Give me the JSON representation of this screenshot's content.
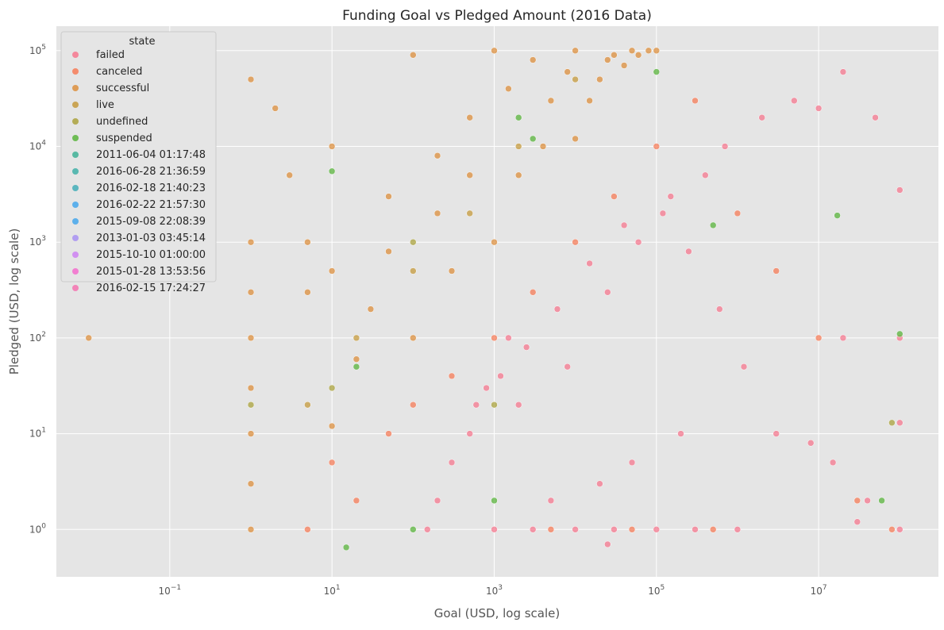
{
  "chart_data": {
    "type": "scatter",
    "title": "Funding Goal vs Pledged Amount (2016 Data)",
    "xlabel": "Goal (USD, log scale)",
    "ylabel": "Pledged (USD, log scale)",
    "x_scale": "log",
    "y_scale": "log",
    "xlim": [
      0.004,
      300000000
    ],
    "ylim": [
      0.32,
      180000
    ],
    "x_ticks": [
      {
        "value": 0.1,
        "base": "10",
        "exp": "−1"
      },
      {
        "value": 10,
        "base": "10",
        "exp": "1"
      },
      {
        "value": 1000,
        "base": "10",
        "exp": "3"
      },
      {
        "value": 100000,
        "base": "10",
        "exp": "5"
      },
      {
        "value": 10000000,
        "base": "10",
        "exp": "7"
      }
    ],
    "y_ticks": [
      {
        "value": 1,
        "base": "10",
        "exp": "0"
      },
      {
        "value": 10,
        "base": "10",
        "exp": "1"
      },
      {
        "value": 100,
        "base": "10",
        "exp": "2"
      },
      {
        "value": 1000,
        "base": "10",
        "exp": "3"
      },
      {
        "value": 10000,
        "base": "10",
        "exp": "4"
      },
      {
        "value": 100000,
        "base": "10",
        "exp": "5"
      }
    ],
    "grid": true,
    "legend": {
      "title": "state",
      "placement": "top-left",
      "entries": [
        {
          "label": "failed",
          "color": "#f77189"
        },
        {
          "label": "canceled",
          "color": "#f7754f"
        },
        {
          "label": "successful",
          "color": "#dc8932"
        },
        {
          "label": "live",
          "color": "#c39532"
        },
        {
          "label": "undefined",
          "color": "#a79e32"
        },
        {
          "label": "suspended",
          "color": "#50b131"
        },
        {
          "label": "2011-06-04 01:17:48",
          "color": "#34ae91"
        },
        {
          "label": "2016-06-28 21:36:59",
          "color": "#36ada4"
        },
        {
          "label": "2016-02-18 21:40:23",
          "color": "#38aab5"
        },
        {
          "label": "2016-02-22 21:57:30",
          "color": "#3ba3ec"
        },
        {
          "label": "2015-09-08 22:08:39",
          "color": "#3ba3ec"
        },
        {
          "label": "2013-01-03 03:45:14",
          "color": "#a48cf4"
        },
        {
          "label": "2015-10-10 01:00:00",
          "color": "#cc7af4"
        },
        {
          "label": "2015-01-28 13:53:56",
          "color": "#f565cc"
        },
        {
          "label": "2016-02-15 17:24:27",
          "color": "#f66bad"
        }
      ]
    },
    "series": [
      {
        "name": "failed",
        "color": "#f77189",
        "x": [
          1000,
          3000,
          10000,
          30000,
          100000,
          300000,
          1000000,
          5000,
          20000,
          50000,
          200000,
          2000,
          8000,
          500,
          800,
          1500,
          25000,
          60000,
          150000,
          400000,
          700000,
          2000000,
          5000000,
          10000000,
          20000000,
          50000000,
          100000000,
          100000000,
          30000000,
          15000000,
          8000000,
          3000000,
          1200000,
          600000,
          250000,
          120000,
          40000,
          15000,
          6000,
          2500,
          1200,
          600,
          300,
          200,
          150,
          100000000,
          100000000,
          20000000,
          40000000,
          25000
        ],
        "y": [
          1,
          1,
          1,
          1,
          1,
          1,
          1,
          2,
          3,
          5,
          10,
          20,
          50,
          10,
          30,
          100,
          300,
          1000,
          3000,
          5000,
          10000,
          20000,
          30000,
          25000,
          60000,
          20000,
          3500,
          1,
          1.2,
          5,
          8,
          10,
          50,
          200,
          800,
          2000,
          1500,
          600,
          200,
          80,
          40,
          20,
          5,
          2,
          1,
          100,
          13,
          100,
          2,
          0.7
        ]
      },
      {
        "name": "canceled",
        "color": "#f7754f",
        "x": [
          5,
          10,
          20,
          50,
          100,
          300,
          1000,
          3000,
          10000,
          30000,
          100000,
          300000,
          1000000,
          3000000,
          10000000,
          30000000,
          80000000,
          5000,
          50000,
          500000
        ],
        "y": [
          1,
          5,
          2,
          10,
          20,
          40,
          100,
          300,
          1000,
          3000,
          10000,
          30000,
          2000,
          500,
          100,
          2,
          1,
          1,
          1,
          1
        ]
      },
      {
        "name": "successful",
        "color": "#dc8932",
        "x": [
          1,
          1,
          1,
          1,
          1,
          1,
          1,
          1,
          2,
          3,
          5,
          5,
          10,
          10,
          20,
          30,
          50,
          100,
          100,
          200,
          300,
          500,
          1000,
          1000,
          2000,
          3000,
          5000,
          10000,
          10000,
          20000,
          30000,
          50000,
          100000,
          0.01,
          10,
          50,
          200,
          500,
          1500,
          4000,
          8000,
          15000,
          25000,
          40000,
          60000,
          80000
        ],
        "y": [
          1,
          3,
          10,
          30,
          100,
          300,
          1000,
          50000,
          25000,
          5000,
          300,
          1000,
          12,
          500,
          60,
          200,
          800,
          100,
          90000,
          2000,
          500,
          20000,
          1000,
          100000,
          5000,
          80000,
          30000,
          12000,
          100000,
          50000,
          90000,
          100000,
          100000,
          100,
          10000,
          3000,
          8000,
          5000,
          40000,
          10000,
          60000,
          30000,
          80000,
          70000,
          90000,
          100000
        ]
      },
      {
        "name": "live",
        "color": "#c39532",
        "x": [
          5,
          20,
          100,
          500,
          2000,
          10000
        ],
        "y": [
          20,
          100,
          500,
          2000,
          10000,
          50000
        ]
      },
      {
        "name": "undefined",
        "color": "#a79e32",
        "x": [
          1,
          10,
          100,
          1000,
          80000000
        ],
        "y": [
          20,
          30,
          1000,
          20,
          13
        ]
      },
      {
        "name": "suspended",
        "color": "#50b131",
        "x": [
          10,
          20,
          15,
          100,
          1000,
          100000,
          17000000,
          60000000,
          100000000,
          2000,
          3000,
          500000
        ],
        "y": [
          5500,
          50,
          0.65,
          1,
          2,
          60000,
          1900,
          2,
          110,
          20000,
          12000,
          1500
        ]
      }
    ]
  }
}
